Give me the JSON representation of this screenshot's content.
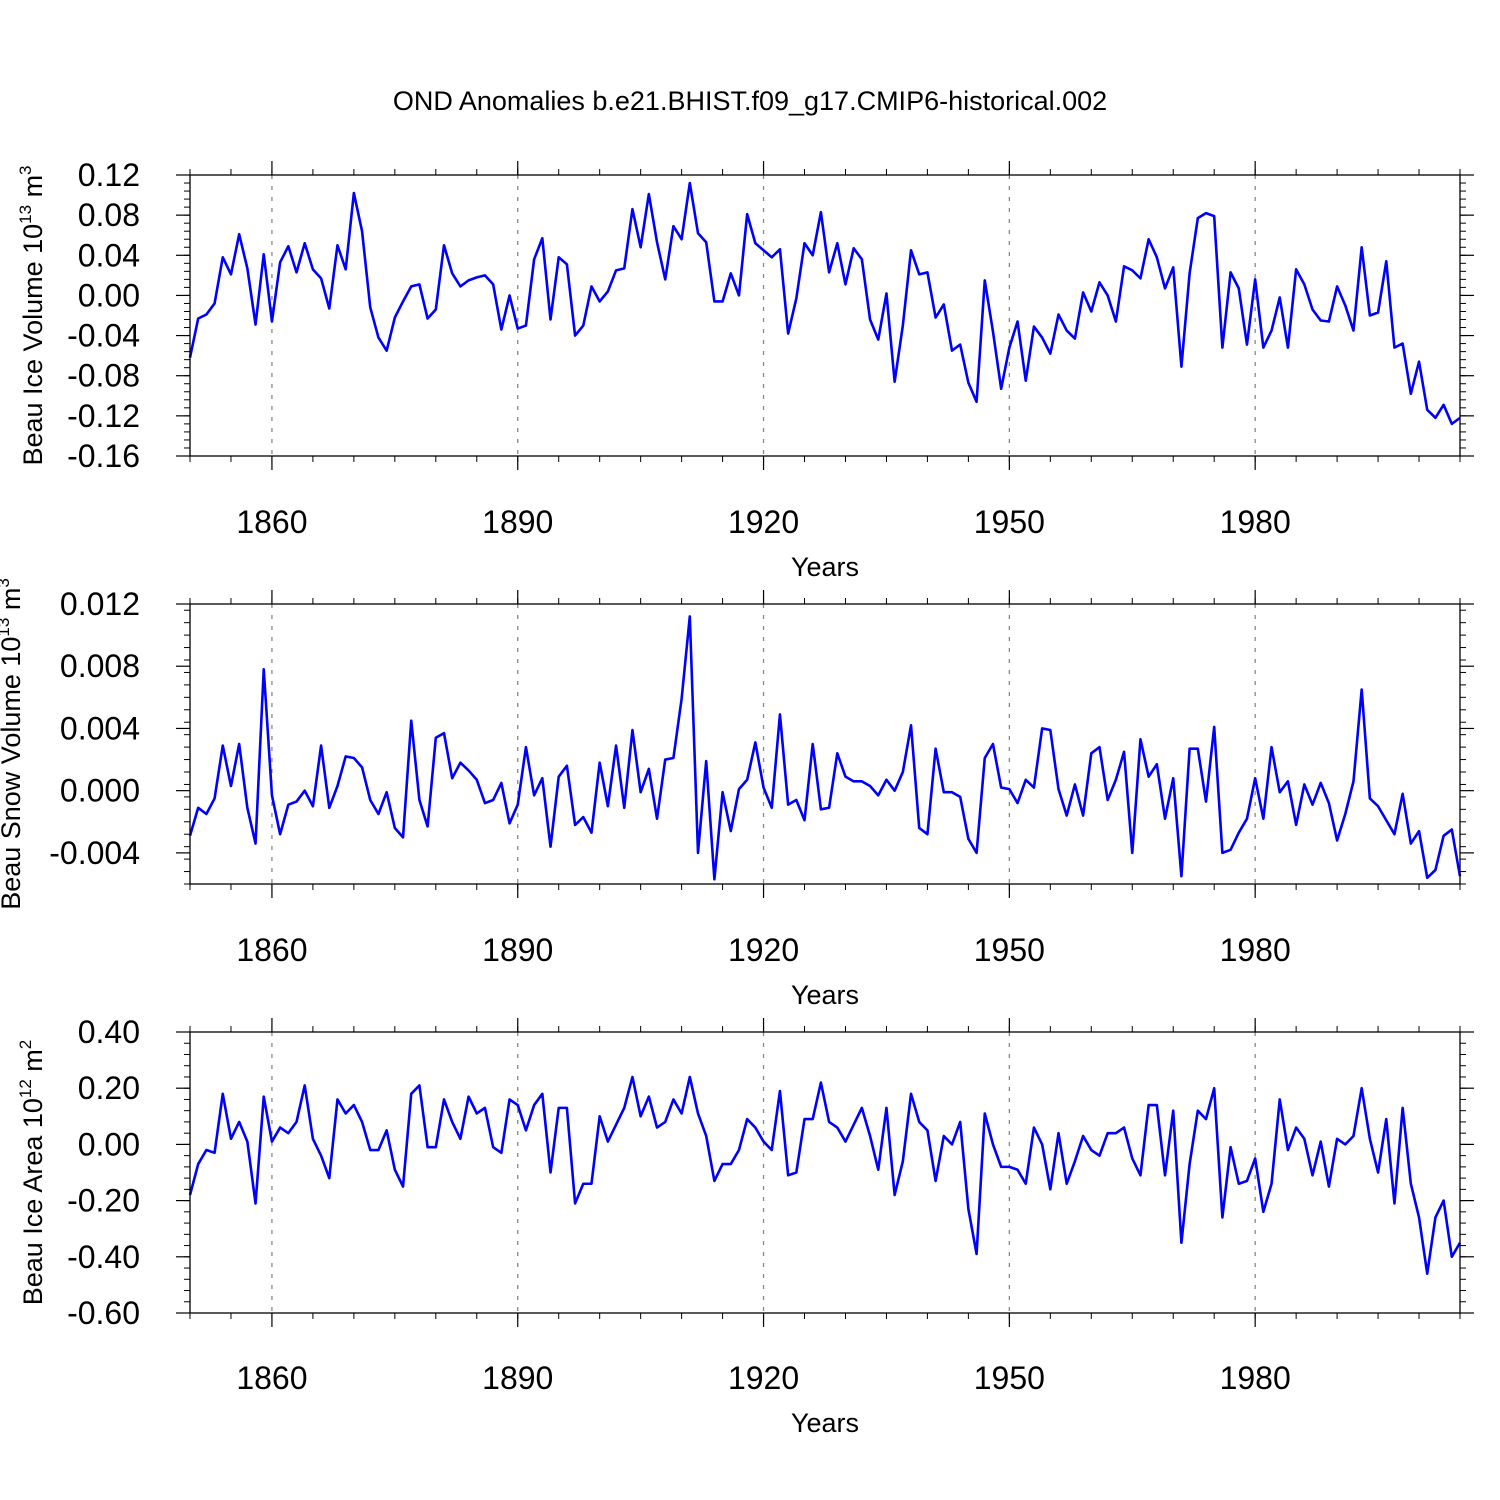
{
  "title": "OND Anomalies b.e21.BHIST.f09_g17.CMIP6-historical.002",
  "colors": {
    "line": "#0000ff",
    "axis": "#000000",
    "gridline": "#888888",
    "background": "#ffffff"
  },
  "chart_data": [
    {
      "type": "line",
      "name": "ice-volume",
      "ylabel": "Beau Ice Volume 10",
      "ylabel_exp": "13",
      "ylabel_unit": " m",
      "ylabel_unit_exp": "3",
      "xlabel": "Years",
      "xlim": [
        1850,
        2005
      ],
      "ylim": [
        -0.16,
        0.12
      ],
      "yticks": [
        0.12,
        0.08,
        0.04,
        0.0,
        -0.04,
        -0.08,
        -0.12,
        -0.16
      ],
      "ytick_labels": [
        "0.12",
        "0.08",
        "0.04",
        "0.00",
        "-0.04",
        "-0.08",
        "-0.12",
        "-0.16"
      ],
      "xticks": [
        1860,
        1890,
        1920,
        1950,
        1980
      ],
      "xtick_labels": [
        "1860",
        "1890",
        "1920",
        "1950",
        "1980"
      ],
      "x_start": 1850,
      "values": [
        -0.062,
        -0.023,
        -0.019,
        -0.008,
        0.038,
        0.021,
        0.061,
        0.027,
        -0.029,
        0.041,
        -0.026,
        0.033,
        0.049,
        0.023,
        0.052,
        0.026,
        0.017,
        -0.013,
        0.05,
        0.026,
        0.102,
        0.064,
        -0.012,
        -0.042,
        -0.055,
        -0.022,
        -0.006,
        0.009,
        0.011,
        -0.023,
        -0.014,
        0.05,
        0.022,
        0.009,
        0.015,
        0.018,
        0.02,
        0.011,
        -0.034,
        0.0,
        -0.033,
        -0.03,
        0.036,
        0.057,
        -0.024,
        0.038,
        0.031,
        -0.04,
        -0.03,
        0.009,
        -0.006,
        0.004,
        0.025,
        0.027,
        0.086,
        0.048,
        0.101,
        0.053,
        0.016,
        0.069,
        0.056,
        0.112,
        0.062,
        0.053,
        -0.006,
        -0.006,
        0.022,
        0.0,
        0.081,
        0.052,
        0.045,
        0.038,
        0.046,
        -0.038,
        -0.003,
        0.052,
        0.04,
        0.083,
        0.023,
        0.052,
        0.011,
        0.047,
        0.036,
        -0.024,
        -0.044,
        0.002,
        -0.086,
        -0.03,
        0.045,
        0.021,
        0.023,
        -0.022,
        -0.009,
        -0.055,
        -0.049,
        -0.087,
        -0.106,
        0.015,
        -0.036,
        -0.093,
        -0.052,
        -0.026,
        -0.085,
        -0.031,
        -0.042,
        -0.058,
        -0.019,
        -0.035,
        -0.043,
        0.003,
        -0.016,
        0.013,
        0.0,
        -0.026,
        0.029,
        0.025,
        0.017,
        0.056,
        0.038,
        0.007,
        0.028,
        -0.071,
        0.022,
        0.077,
        0.082,
        0.079,
        -0.052,
        0.023,
        0.007,
        -0.049,
        0.016,
        -0.052,
        -0.035,
        -0.002,
        -0.052,
        0.026,
        0.011,
        -0.014,
        -0.025,
        -0.026,
        0.009,
        -0.01,
        -0.035,
        0.048,
        -0.02,
        -0.017,
        0.034,
        -0.052,
        -0.048,
        -0.098,
        -0.066,
        -0.114,
        -0.122,
        -0.109,
        -0.128,
        -0.122
      ]
    },
    {
      "type": "line",
      "name": "snow-volume",
      "ylabel": "Beau Snow Volume 10",
      "ylabel_exp": "13",
      "ylabel_unit": " m",
      "ylabel_unit_exp": "3",
      "xlabel": "Years",
      "xlim": [
        1850,
        2005
      ],
      "ylim": [
        -0.006,
        0.012
      ],
      "yticks": [
        0.012,
        0.008,
        0.004,
        0.0,
        -0.004
      ],
      "ytick_labels": [
        "0.012",
        "0.008",
        "0.004",
        "0.000",
        "-0.004"
      ],
      "xticks": [
        1860,
        1890,
        1920,
        1950,
        1980
      ],
      "xtick_labels": [
        "1860",
        "1890",
        "1920",
        "1950",
        "1980"
      ],
      "x_start": 1850,
      "values": [
        -0.0029,
        -0.0011,
        -0.0015,
        -0.0005,
        0.0029,
        0.0003,
        0.003,
        -0.0011,
        -0.0034,
        0.0078,
        -0.0003,
        -0.0028,
        -0.0009,
        -0.0007,
        0.0,
        -0.001,
        0.0029,
        -0.0011,
        0.0003,
        0.0022,
        0.0021,
        0.0015,
        -0.0006,
        -0.0015,
        -0.0001,
        -0.0024,
        -0.003,
        0.0045,
        -0.0006,
        -0.0023,
        0.0034,
        0.0037,
        0.0008,
        0.0018,
        0.0013,
        0.0007,
        -0.0008,
        -0.0006,
        0.0005,
        -0.0021,
        -0.0009,
        0.0028,
        -0.0003,
        0.0008,
        -0.0036,
        0.0009,
        0.0016,
        -0.0022,
        -0.0017,
        -0.0027,
        0.0018,
        -0.001,
        0.0029,
        -0.0011,
        0.0039,
        -0.0001,
        0.0014,
        -0.0018,
        0.002,
        0.0021,
        0.0059,
        0.0112,
        -0.004,
        0.0019,
        -0.0057,
        -0.0001,
        -0.0026,
        0.0001,
        0.0007,
        0.0031,
        0.0002,
        -0.0011,
        0.0049,
        -0.0009,
        -0.0006,
        -0.0019,
        0.003,
        -0.0012,
        -0.0011,
        0.0024,
        0.0009,
        0.0006,
        0.0006,
        0.0003,
        -0.0003,
        0.0007,
        0.0,
        0.0012,
        0.0042,
        -0.0024,
        -0.0028,
        0.0027,
        -0.0001,
        -0.0001,
        -0.0004,
        -0.0031,
        -0.004,
        0.0021,
        0.003,
        0.0002,
        0.0001,
        -0.0008,
        0.0007,
        0.0002,
        0.004,
        0.0039,
        0.0001,
        -0.0016,
        0.0004,
        -0.0016,
        0.0024,
        0.0028,
        -0.0006,
        0.0007,
        0.0025,
        -0.004,
        0.0033,
        0.0009,
        0.0017,
        -0.0018,
        0.0008,
        -0.0055,
        0.0027,
        0.0027,
        -0.0007,
        0.0041,
        -0.004,
        -0.0038,
        -0.0027,
        -0.0018,
        0.0008,
        -0.0018,
        0.0028,
        -0.0001,
        0.0006,
        -0.0022,
        0.0004,
        -0.0009,
        0.0005,
        -0.0008,
        -0.0032,
        -0.0015,
        0.0006,
        0.0065,
        -0.0005,
        -0.001,
        -0.0019,
        -0.0028,
        -0.0002,
        -0.0034,
        -0.0026,
        -0.0056,
        -0.0051,
        -0.0029,
        -0.0025,
        -0.0055
      ]
    },
    {
      "type": "line",
      "name": "ice-area",
      "ylabel": "Beau Ice Area 10",
      "ylabel_exp": "12",
      "ylabel_unit": " m",
      "ylabel_unit_exp": "2",
      "xlabel": "Years",
      "xlim": [
        1850,
        2005
      ],
      "ylim": [
        -0.6,
        0.4
      ],
      "yticks": [
        0.4,
        0.2,
        0.0,
        -0.2,
        -0.4,
        -0.6
      ],
      "ytick_labels": [
        "0.40",
        "0.20",
        "0.00",
        "-0.20",
        "-0.40",
        "-0.60"
      ],
      "xticks": [
        1860,
        1890,
        1920,
        1950,
        1980
      ],
      "xtick_labels": [
        "1860",
        "1890",
        "1920",
        "1950",
        "1980"
      ],
      "x_start": 1850,
      "values": [
        -0.18,
        -0.07,
        -0.02,
        -0.03,
        0.18,
        0.02,
        0.08,
        0.01,
        -0.21,
        0.17,
        0.01,
        0.06,
        0.04,
        0.08,
        0.21,
        0.02,
        -0.04,
        -0.12,
        0.16,
        0.11,
        0.14,
        0.08,
        -0.02,
        -0.02,
        0.05,
        -0.09,
        -0.15,
        0.18,
        0.21,
        -0.01,
        -0.01,
        0.16,
        0.08,
        0.02,
        0.17,
        0.11,
        0.13,
        -0.01,
        -0.03,
        0.16,
        0.14,
        0.05,
        0.14,
        0.18,
        -0.1,
        0.13,
        0.13,
        -0.21,
        -0.14,
        -0.14,
        0.1,
        0.01,
        0.07,
        0.13,
        0.24,
        0.1,
        0.17,
        0.06,
        0.08,
        0.16,
        0.11,
        0.24,
        0.11,
        0.03,
        -0.13,
        -0.07,
        -0.07,
        -0.02,
        0.09,
        0.06,
        0.01,
        -0.02,
        0.19,
        -0.11,
        -0.1,
        0.09,
        0.09,
        0.22,
        0.08,
        0.06,
        0.01,
        0.07,
        0.13,
        0.03,
        -0.09,
        0.13,
        -0.18,
        -0.06,
        0.18,
        0.08,
        0.05,
        -0.13,
        0.03,
        0.0,
        0.08,
        -0.23,
        -0.39,
        0.11,
        0.0,
        -0.08,
        -0.08,
        -0.09,
        -0.14,
        0.06,
        0.0,
        -0.16,
        0.04,
        -0.14,
        -0.06,
        0.03,
        -0.02,
        -0.04,
        0.04,
        0.04,
        0.06,
        -0.05,
        -0.11,
        0.14,
        0.14,
        -0.11,
        0.12,
        -0.35,
        -0.07,
        0.12,
        0.09,
        0.2,
        -0.26,
        -0.01,
        -0.14,
        -0.13,
        -0.05,
        -0.24,
        -0.14,
        0.16,
        -0.02,
        0.06,
        0.02,
        -0.11,
        0.01,
        -0.15,
        0.02,
        0.0,
        0.03,
        0.2,
        0.02,
        -0.1,
        0.09,
        -0.21,
        0.13,
        -0.14,
        -0.26,
        -0.46,
        -0.26,
        -0.2,
        -0.4,
        -0.35
      ]
    }
  ]
}
